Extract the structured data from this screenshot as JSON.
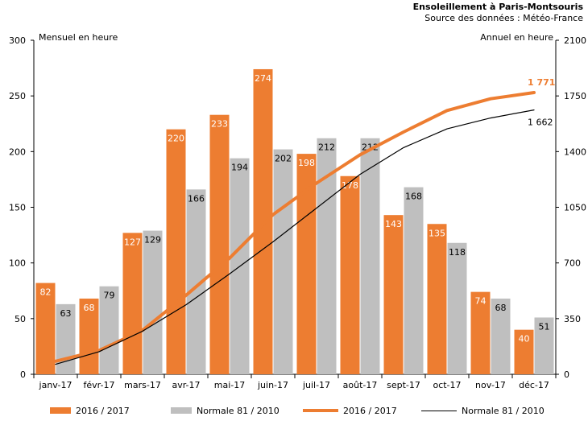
{
  "chart_data": {
    "type": "bar",
    "title": "Ensoleillement à Paris-Montsouris",
    "subtitle": "Source des données : Météo-France",
    "ylabel_left": "Mensuel en heure",
    "ylabel_right": "Annuel en heure",
    "categories": [
      "janv-17",
      "févr-17",
      "mars-17",
      "avr-17",
      "mai-17",
      "juin-17",
      "juil-17",
      "août-17",
      "sept-17",
      "oct-17",
      "nov-17",
      "déc-17"
    ],
    "ylim_left": [
      0,
      300
    ],
    "yticks_left": [
      "0",
      "50",
      "100",
      "150",
      "200",
      "250",
      "300"
    ],
    "ylim_right": [
      0,
      2100
    ],
    "yticks_right": [
      "0",
      "350",
      "700",
      "1050",
      "1400",
      "1750",
      "2100"
    ],
    "series": [
      {
        "name": "2016 / 2017",
        "kind": "bar",
        "axis": "left",
        "color": "#ED7D31",
        "values": [
          82,
          68,
          127,
          220,
          233,
          274,
          198,
          178,
          143,
          135,
          74,
          40
        ]
      },
      {
        "name": "Normale 81 / 2010",
        "kind": "bar",
        "axis": "left",
        "color": "#BFBFBF",
        "values": [
          63,
          79,
          129,
          166,
          194,
          202,
          212,
          212,
          168,
          118,
          68,
          51
        ]
      },
      {
        "name": "2016 / 2017",
        "kind": "line",
        "axis": "right",
        "color": "#ED7D31",
        "values": [
          82,
          150,
          277,
          497,
          730,
          1004,
          1202,
          1380,
          1523,
          1658,
          1732,
          1771
        ],
        "end_label": "1 771"
      },
      {
        "name": "Normale 81 / 2010",
        "kind": "line",
        "axis": "right",
        "color": "#000000",
        "values": [
          63,
          142,
          271,
          437,
          631,
          833,
          1045,
          1257,
          1425,
          1543,
          1611,
          1662
        ],
        "end_label": "1 662"
      }
    ],
    "legend_position": "bottom",
    "grid": false
  }
}
